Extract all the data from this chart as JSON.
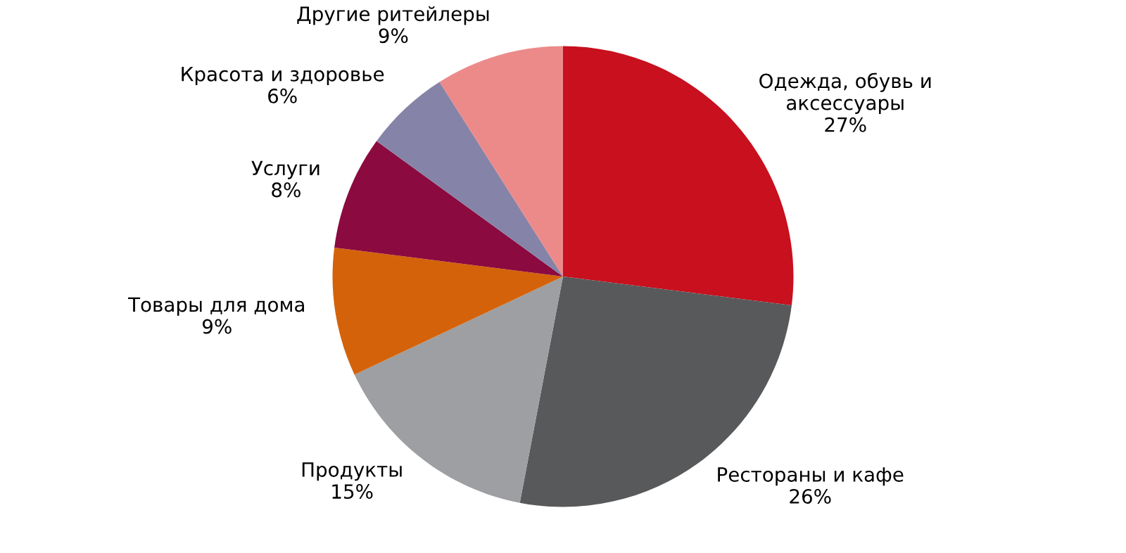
{
  "chart_data": {
    "type": "pie",
    "categories": [
      "Одежда, обувь и\nаксессуары",
      "Рестораны и кафе",
      "Продукты",
      "Товары для дома",
      "Услуги",
      "Красота и здоровье",
      "Другие ритейлеры"
    ],
    "values": [
      27,
      26,
      15,
      9,
      8,
      6,
      9
    ],
    "value_labels": [
      "27%",
      "26%",
      "15%",
      "9%",
      "8%",
      "6%",
      "9%"
    ],
    "colors": [
      "#c8101e",
      "#58595b",
      "#9d9fa2",
      "#d4620a",
      "#8b0a3f",
      "#8683a8",
      "#ec8a8a"
    ]
  }
}
